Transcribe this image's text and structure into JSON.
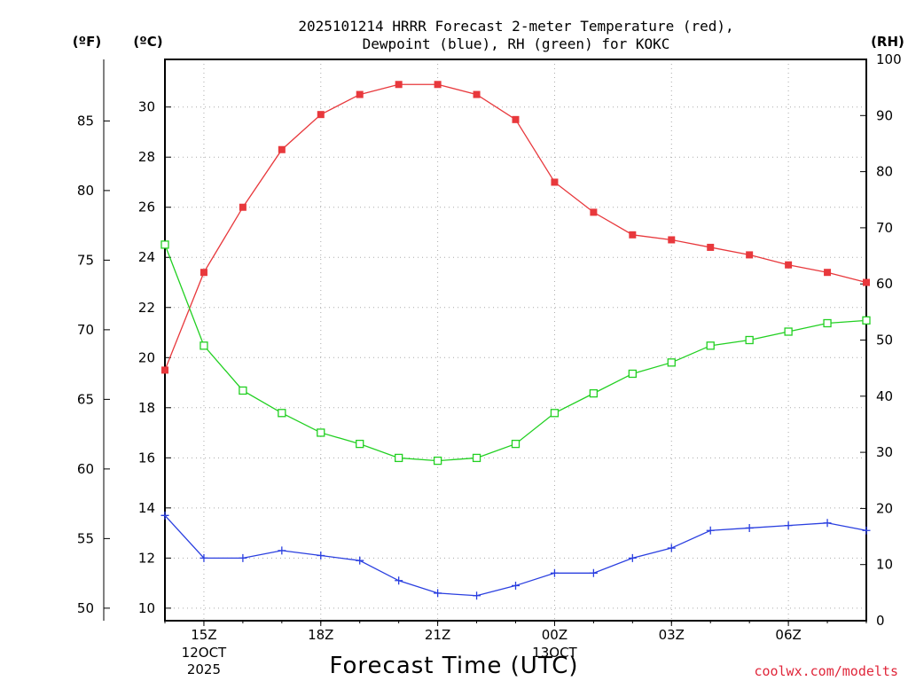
{
  "chart_data": {
    "type": "line",
    "title": "2025101214 HRRR Forecast 2-meter Temperature (red),",
    "subtitle": "Dewpoint (blue), RH (green) for KOKC",
    "xlabel": "Forecast Time (UTC)",
    "credit": "coolwx.com/modelts",
    "units": {
      "fahrenheit": "(ºF)",
      "celsius": "(ºC)",
      "rh": "(RH)"
    },
    "x_hours": [
      14,
      15,
      16,
      17,
      18,
      19,
      20,
      21,
      22,
      23,
      24,
      25,
      26,
      27,
      28,
      29,
      30,
      31,
      32
    ],
    "xlim": [
      14,
      32
    ],
    "x_ticks": [
      {
        "hour": 15,
        "label": "15Z",
        "date1": "12OCT",
        "date2": "2025"
      },
      {
        "hour": 18,
        "label": "18Z"
      },
      {
        "hour": 21,
        "label": "21Z"
      },
      {
        "hour": 24,
        "label": "00Z",
        "date1": "13OCT"
      },
      {
        "hour": 27,
        "label": "03Z"
      },
      {
        "hour": 30,
        "label": "06Z"
      }
    ],
    "celsius_axis": {
      "ylim": [
        9.5,
        31.9
      ],
      "ticks": [
        10,
        12,
        14,
        16,
        18,
        20,
        22,
        24,
        26,
        28,
        30
      ]
    },
    "fahrenheit_axis": {
      "ticks": [
        50,
        55,
        60,
        65,
        70,
        75,
        80,
        85
      ]
    },
    "rh_axis": {
      "ylim": [
        0,
        100
      ],
      "ticks": [
        0,
        10,
        20,
        30,
        40,
        50,
        60,
        70,
        80,
        90,
        100
      ]
    },
    "series": [
      {
        "name": "Temperature",
        "axis": "celsius",
        "color": "#e8383c",
        "marker": "filled-square",
        "values": [
          19.5,
          23.4,
          26.0,
          28.3,
          29.7,
          30.5,
          30.9,
          30.9,
          30.5,
          29.5,
          27.0,
          25.8,
          24.9,
          24.7,
          24.4,
          24.1,
          23.7,
          23.4,
          23.0
        ]
      },
      {
        "name": "Dewpoint",
        "axis": "celsius",
        "color": "#2a3fe0",
        "marker": "plus",
        "values": [
          13.7,
          12.0,
          12.0,
          12.3,
          12.1,
          11.9,
          11.1,
          10.6,
          10.5,
          10.9,
          11.4,
          11.4,
          12.0,
          12.4,
          13.1,
          13.2,
          13.3,
          13.4,
          13.1
        ]
      },
      {
        "name": "RH",
        "axis": "rh",
        "color": "#22d022",
        "marker": "open-square",
        "values": [
          67,
          49,
          41,
          37,
          33.5,
          31.5,
          29,
          28.5,
          29,
          31.5,
          37,
          40.5,
          44,
          46,
          49,
          50,
          51.5,
          53,
          53.5
        ]
      }
    ]
  }
}
